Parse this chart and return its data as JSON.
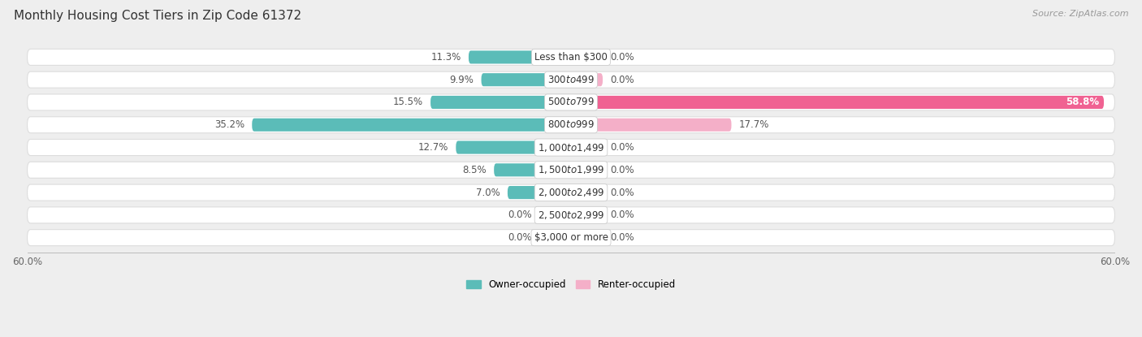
{
  "title": "Monthly Housing Cost Tiers in Zip Code 61372",
  "source": "Source: ZipAtlas.com",
  "categories": [
    "Less than $300",
    "$300 to $499",
    "$500 to $799",
    "$800 to $999",
    "$1,000 to $1,499",
    "$1,500 to $1,999",
    "$2,000 to $2,499",
    "$2,500 to $2,999",
    "$3,000 or more"
  ],
  "owner_values": [
    11.3,
    9.9,
    15.5,
    35.2,
    12.7,
    8.5,
    7.0,
    0.0,
    0.0
  ],
  "renter_values": [
    0.0,
    0.0,
    58.8,
    17.7,
    0.0,
    0.0,
    0.0,
    0.0,
    0.0
  ],
  "owner_color": "#5bbcb8",
  "renter_color_light": "#f4afc8",
  "renter_color_dark": "#f06292",
  "axis_max": 60.0,
  "bg_color": "#eeeeee",
  "pill_color": "#ffffff",
  "pill_edge_color": "#dddddd",
  "title_fontsize": 11,
  "label_fontsize": 8.5,
  "tick_fontsize": 8.5,
  "legend_fontsize": 8.5,
  "category_fontsize": 8.5,
  "zero_stub": 3.5
}
